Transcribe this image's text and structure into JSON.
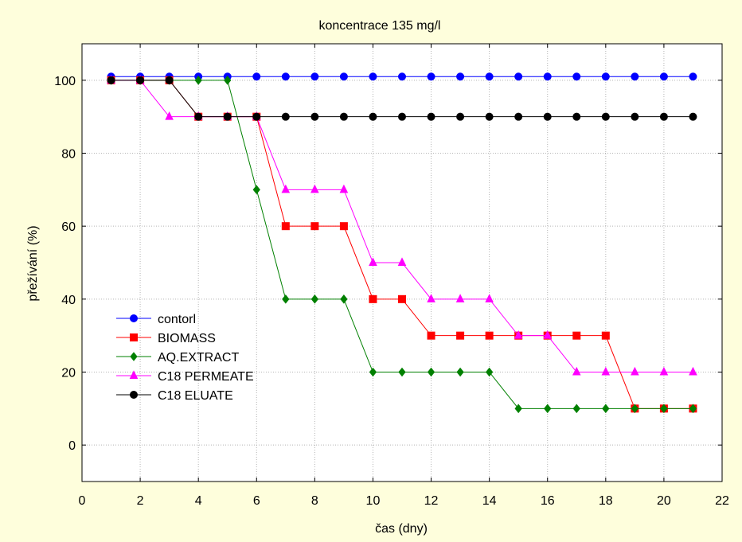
{
  "chart_data": {
    "type": "line",
    "title": "koncentrace 135 mg/l",
    "xlabel": "čas (dny)",
    "ylabel": "přežívání (%)",
    "xlim": [
      0,
      22
    ],
    "ylim": [
      -10,
      110
    ],
    "x_ticks": [
      "0",
      "2",
      "4",
      "6",
      "8",
      "10",
      "12",
      "14",
      "16",
      "18",
      "20",
      "22"
    ],
    "y_ticks": [
      "0",
      "20",
      "40",
      "60",
      "80",
      "100"
    ],
    "grid": true,
    "legend_position": "bottom-left",
    "x": [
      1,
      2,
      3,
      4,
      5,
      6,
      7,
      8,
      9,
      10,
      11,
      12,
      13,
      14,
      15,
      16,
      17,
      18,
      19,
      20,
      21
    ],
    "series": [
      {
        "name": "contorl",
        "color": "#0000ff",
        "marker": "circle",
        "values": [
          101,
          101,
          101,
          101,
          101,
          101,
          101,
          101,
          101,
          101,
          101,
          101,
          101,
          101,
          101,
          101,
          101,
          101,
          101,
          101,
          101
        ]
      },
      {
        "name": "BIOMASS",
        "color": "#ff0000",
        "marker": "square",
        "values": [
          100,
          100,
          100,
          90,
          90,
          90,
          60,
          60,
          60,
          40,
          40,
          30,
          30,
          30,
          30,
          30,
          30,
          30,
          10,
          10,
          10
        ]
      },
      {
        "name": "AQ.EXTRACT",
        "color": "#008000",
        "marker": "diamond",
        "values": [
          100,
          100,
          100,
          100,
          100,
          70,
          40,
          40,
          40,
          20,
          20,
          20,
          20,
          20,
          10,
          10,
          10,
          10,
          10,
          10,
          10
        ]
      },
      {
        "name": "C18 PERMEATE",
        "color": "#ff00ff",
        "marker": "triangle",
        "values": [
          100,
          100,
          90,
          90,
          90,
          90,
          70,
          70,
          70,
          50,
          50,
          40,
          40,
          40,
          30,
          30,
          20,
          20,
          20,
          20,
          20
        ]
      },
      {
        "name": "C18 ELUATE",
        "color": "#000000",
        "marker": "circle",
        "values": [
          100,
          100,
          100,
          90,
          90,
          90,
          90,
          90,
          90,
          90,
          90,
          90,
          90,
          90,
          90,
          90,
          90,
          90,
          90,
          90,
          90
        ]
      }
    ]
  }
}
